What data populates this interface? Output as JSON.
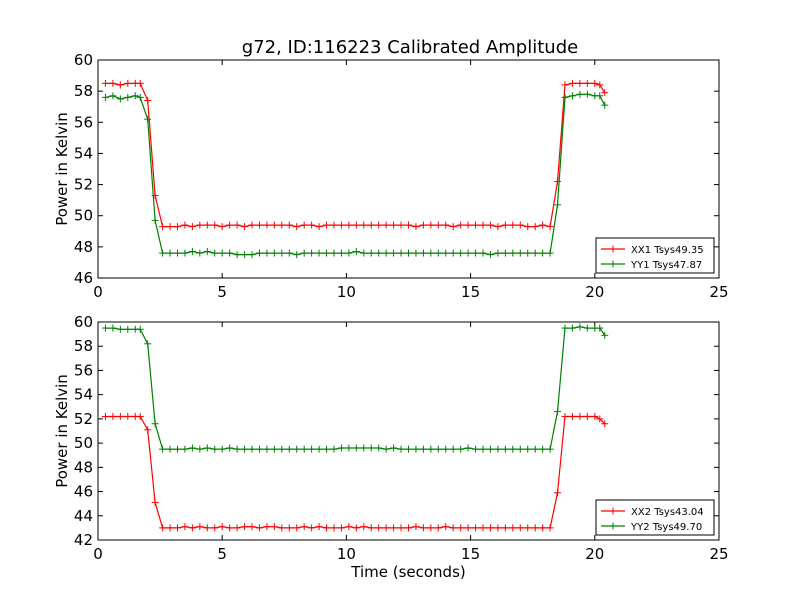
{
  "title": "g72, ID:116223 Calibrated Amplitude",
  "chart_data": [
    {
      "type": "line",
      "ylabel": "Power in Kelvin",
      "xlabel": "",
      "xlim": [
        0,
        25
      ],
      "ylim": [
        46,
        60
      ],
      "x_ticks": [
        0,
        5,
        10,
        15,
        20,
        25
      ],
      "y_ticks": [
        46,
        48,
        50,
        52,
        54,
        56,
        58,
        60
      ],
      "grid": false,
      "legend_position": "lower-right",
      "series": [
        {
          "name": "XX1 Tsys49.35",
          "color": "#ff0000",
          "marker": "+",
          "x": [
            0.3,
            0.6,
            0.9,
            1.2,
            1.5,
            1.7,
            2.0,
            2.3,
            2.6,
            2.9,
            3.2,
            3.5,
            3.8,
            4.1,
            4.4,
            4.7,
            5.0,
            5.3,
            5.6,
            5.9,
            6.2,
            6.5,
            6.8,
            7.1,
            7.4,
            7.7,
            8.0,
            8.3,
            8.6,
            8.9,
            9.2,
            9.5,
            9.8,
            10.1,
            10.4,
            10.7,
            11.0,
            11.3,
            11.6,
            11.9,
            12.2,
            12.5,
            12.8,
            13.1,
            13.4,
            13.7,
            14.0,
            14.3,
            14.6,
            14.9,
            15.2,
            15.5,
            15.8,
            16.1,
            16.4,
            16.7,
            17.0,
            17.3,
            17.6,
            17.9,
            18.2,
            18.5,
            18.8,
            19.1,
            19.4,
            19.7,
            20.0,
            20.2,
            20.4
          ],
          "values": [
            58.5,
            58.5,
            58.4,
            58.5,
            58.5,
            58.5,
            57.4,
            51.3,
            49.3,
            49.3,
            49.3,
            49.4,
            49.3,
            49.4,
            49.4,
            49.4,
            49.3,
            49.4,
            49.4,
            49.3,
            49.4,
            49.4,
            49.4,
            49.4,
            49.4,
            49.4,
            49.3,
            49.4,
            49.4,
            49.3,
            49.4,
            49.4,
            49.4,
            49.4,
            49.4,
            49.4,
            49.4,
            49.4,
            49.4,
            49.4,
            49.4,
            49.4,
            49.3,
            49.4,
            49.4,
            49.4,
            49.4,
            49.3,
            49.4,
            49.4,
            49.4,
            49.4,
            49.4,
            49.3,
            49.4,
            49.4,
            49.4,
            49.3,
            49.3,
            49.4,
            49.3,
            52.2,
            58.4,
            58.5,
            58.5,
            58.5,
            58.5,
            58.4,
            57.9
          ]
        },
        {
          "name": "YY1 Tsys47.87",
          "color": "#008000",
          "marker": "+",
          "x": [
            0.3,
            0.6,
            0.9,
            1.2,
            1.5,
            1.7,
            2.0,
            2.3,
            2.6,
            2.9,
            3.2,
            3.5,
            3.8,
            4.1,
            4.4,
            4.7,
            5.0,
            5.3,
            5.6,
            5.9,
            6.2,
            6.5,
            6.8,
            7.1,
            7.4,
            7.7,
            8.0,
            8.3,
            8.6,
            8.9,
            9.2,
            9.5,
            9.8,
            10.1,
            10.4,
            10.7,
            11.0,
            11.3,
            11.6,
            11.9,
            12.2,
            12.5,
            12.8,
            13.1,
            13.4,
            13.7,
            14.0,
            14.3,
            14.6,
            14.9,
            15.2,
            15.5,
            15.8,
            16.1,
            16.4,
            16.7,
            17.0,
            17.3,
            17.6,
            17.9,
            18.2,
            18.5,
            18.8,
            19.1,
            19.4,
            19.7,
            20.0,
            20.2,
            20.4
          ],
          "values": [
            57.6,
            57.7,
            57.5,
            57.6,
            57.7,
            57.6,
            56.2,
            49.7,
            47.6,
            47.6,
            47.6,
            47.6,
            47.7,
            47.6,
            47.7,
            47.6,
            47.6,
            47.6,
            47.5,
            47.5,
            47.5,
            47.6,
            47.6,
            47.6,
            47.6,
            47.6,
            47.5,
            47.6,
            47.6,
            47.6,
            47.6,
            47.6,
            47.6,
            47.6,
            47.7,
            47.6,
            47.6,
            47.6,
            47.6,
            47.6,
            47.6,
            47.6,
            47.6,
            47.6,
            47.6,
            47.6,
            47.6,
            47.6,
            47.6,
            47.6,
            47.6,
            47.6,
            47.5,
            47.6,
            47.6,
            47.6,
            47.6,
            47.6,
            47.6,
            47.6,
            47.6,
            50.7,
            57.6,
            57.7,
            57.8,
            57.8,
            57.7,
            57.7,
            57.1
          ]
        }
      ]
    },
    {
      "type": "line",
      "ylabel": "Power in Kelvin",
      "xlabel": "Time (seconds)",
      "xlim": [
        0,
        25
      ],
      "ylim": [
        42,
        60
      ],
      "x_ticks": [
        0,
        5,
        10,
        15,
        20,
        25
      ],
      "y_ticks": [
        42,
        44,
        46,
        48,
        50,
        52,
        54,
        56,
        58,
        60
      ],
      "grid": false,
      "legend_position": "lower-right",
      "series": [
        {
          "name": "XX2 Tsys43.04",
          "color": "#ff0000",
          "marker": "+",
          "x": [
            0.3,
            0.6,
            0.9,
            1.2,
            1.5,
            1.7,
            2.0,
            2.3,
            2.6,
            2.9,
            3.2,
            3.5,
            3.8,
            4.1,
            4.4,
            4.7,
            5.0,
            5.3,
            5.6,
            5.9,
            6.2,
            6.5,
            6.8,
            7.1,
            7.4,
            7.7,
            8.0,
            8.3,
            8.6,
            8.9,
            9.2,
            9.5,
            9.8,
            10.1,
            10.4,
            10.7,
            11.0,
            11.3,
            11.6,
            11.9,
            12.2,
            12.5,
            12.8,
            13.1,
            13.4,
            13.7,
            14.0,
            14.3,
            14.6,
            14.9,
            15.2,
            15.5,
            15.8,
            16.1,
            16.4,
            16.7,
            17.0,
            17.3,
            17.6,
            17.9,
            18.2,
            18.5,
            18.8,
            19.1,
            19.4,
            19.7,
            20.0,
            20.2,
            20.4
          ],
          "values": [
            52.2,
            52.2,
            52.2,
            52.2,
            52.2,
            52.2,
            51.1,
            45.1,
            43.0,
            43.0,
            43.0,
            43.1,
            43.0,
            43.1,
            43.0,
            43.0,
            43.1,
            43.0,
            43.0,
            43.1,
            43.1,
            43.0,
            43.1,
            43.1,
            43.0,
            43.0,
            43.0,
            43.1,
            43.0,
            43.1,
            43.0,
            43.0,
            43.0,
            43.1,
            43.0,
            43.1,
            43.0,
            43.0,
            43.0,
            43.0,
            43.0,
            43.0,
            43.1,
            43.0,
            43.0,
            43.0,
            43.1,
            43.0,
            43.0,
            43.0,
            43.0,
            43.0,
            43.0,
            43.0,
            43.0,
            43.0,
            43.0,
            43.0,
            43.0,
            43.0,
            43.0,
            45.9,
            52.2,
            52.2,
            52.2,
            52.2,
            52.2,
            52.0,
            51.6
          ]
        },
        {
          "name": "YY2 Tsys49.70",
          "color": "#008000",
          "marker": "+",
          "x": [
            0.3,
            0.6,
            0.9,
            1.2,
            1.5,
            1.7,
            2.0,
            2.3,
            2.6,
            2.9,
            3.2,
            3.5,
            3.8,
            4.1,
            4.4,
            4.7,
            5.0,
            5.3,
            5.6,
            5.9,
            6.2,
            6.5,
            6.8,
            7.1,
            7.4,
            7.7,
            8.0,
            8.3,
            8.6,
            8.9,
            9.2,
            9.5,
            9.8,
            10.1,
            10.4,
            10.7,
            11.0,
            11.3,
            11.6,
            11.9,
            12.2,
            12.5,
            12.8,
            13.1,
            13.4,
            13.7,
            14.0,
            14.3,
            14.6,
            14.9,
            15.2,
            15.5,
            15.8,
            16.1,
            16.4,
            16.7,
            17.0,
            17.3,
            17.6,
            17.9,
            18.2,
            18.5,
            18.8,
            19.1,
            19.4,
            19.7,
            20.0,
            20.2,
            20.4
          ],
          "values": [
            59.5,
            59.5,
            59.4,
            59.4,
            59.4,
            59.4,
            58.2,
            51.6,
            49.5,
            49.5,
            49.5,
            49.5,
            49.6,
            49.5,
            49.6,
            49.5,
            49.5,
            49.6,
            49.5,
            49.5,
            49.5,
            49.5,
            49.5,
            49.5,
            49.5,
            49.5,
            49.5,
            49.5,
            49.5,
            49.5,
            49.5,
            49.5,
            49.6,
            49.6,
            49.6,
            49.6,
            49.6,
            49.6,
            49.5,
            49.6,
            49.5,
            49.5,
            49.5,
            49.5,
            49.5,
            49.5,
            49.5,
            49.5,
            49.5,
            49.6,
            49.5,
            49.5,
            49.5,
            49.5,
            49.5,
            49.5,
            49.5,
            49.5,
            49.5,
            49.5,
            49.5,
            52.6,
            59.5,
            59.5,
            59.6,
            59.5,
            59.5,
            59.5,
            58.9
          ]
        }
      ]
    }
  ]
}
